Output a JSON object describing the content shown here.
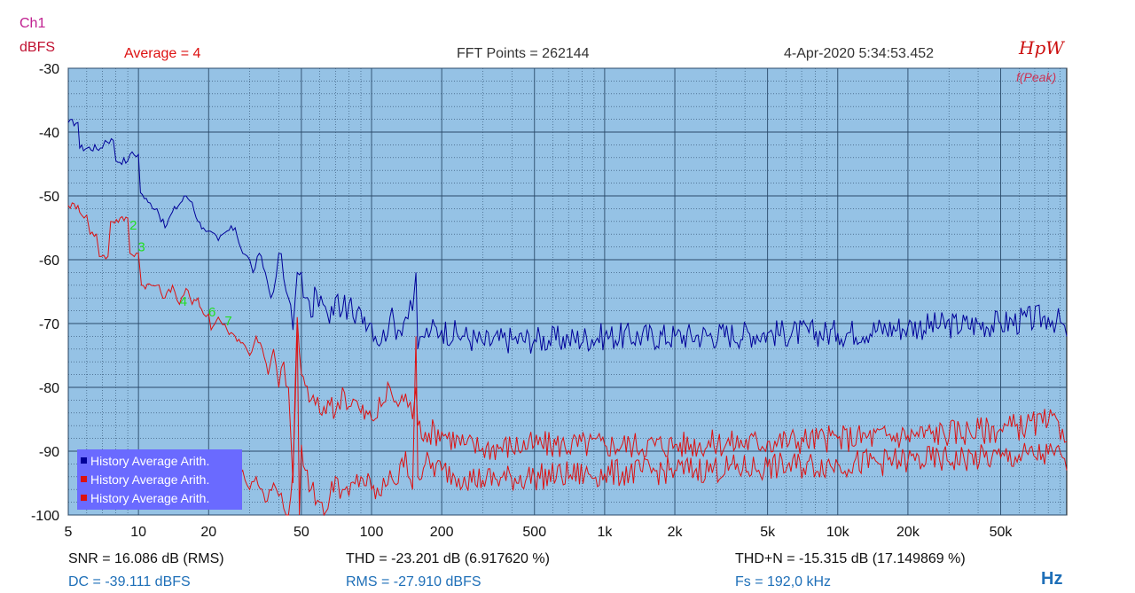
{
  "header": {
    "channel": "Ch1",
    "unit": "dBFS",
    "average": "Average = 4",
    "fft_points": "FFT Points = 262144",
    "timestamp": "4-Apr-2020  5:34:53.452",
    "logo": "HpW",
    "peak_label": "f(Peak)"
  },
  "legend": {
    "items": [
      {
        "label": "History Average Arith.",
        "color": "#000099"
      },
      {
        "label": "History Average Arith.",
        "color": "#dd1111"
      },
      {
        "label": "History Average Arith.",
        "color": "#dd1111"
      }
    ]
  },
  "stats": {
    "snr": "SNR = 16.086 dB (RMS)",
    "thd": "THD = -23.201 dB (6.917620 %)",
    "thdn": "THD+N = -15.315 dB (17.149869 %)",
    "dc": "DC = -39.111 dBFS",
    "rms": "RMS = -27.910 dBFS",
    "fs": "Fs = 192,0 kHz",
    "x_unit": "Hz"
  },
  "colors": {
    "plot_bg": "#95c2e5",
    "grid": "#2a4a6a",
    "blue_trace": "#000099",
    "red_trace": "#dd1111",
    "marker": "#22dd22",
    "legend_bg": "#6a6aff"
  },
  "chart_data": {
    "type": "line",
    "x_scale": "log",
    "xlim": [
      5,
      96000
    ],
    "ylim": [
      -100,
      -30
    ],
    "y_ticks": [
      "-30",
      "-40",
      "-50",
      "-60",
      "-70",
      "-80",
      "-90",
      "-100"
    ],
    "x_ticks": [
      "5",
      "10",
      "20",
      "50",
      "100",
      "200",
      "500",
      "1k",
      "2k",
      "5k",
      "10k",
      "20k",
      "50k"
    ],
    "x_tick_values": [
      5,
      10,
      20,
      50,
      100,
      200,
      500,
      1000,
      2000,
      5000,
      10000,
      20000,
      50000
    ],
    "markers": [
      {
        "label": "2",
        "x": 9.5,
        "y": -55.3
      },
      {
        "label": "3",
        "x": 10.3,
        "y": -58.7
      },
      {
        "label": "4",
        "x": 15.6,
        "y": -67.2
      },
      {
        "label": "6",
        "x": 20.7,
        "y": -68.9
      },
      {
        "label": "7",
        "x": 24.3,
        "y": -70.3
      }
    ],
    "series": [
      {
        "color": "#000099",
        "points": [
          [
            5,
            -38.5
          ],
          [
            5.5,
            -38.5
          ],
          [
            5.6,
            -42.5
          ],
          [
            7,
            -42.5
          ],
          [
            7.2,
            -41.3
          ],
          [
            7.8,
            -41.3
          ],
          [
            8,
            -44.5
          ],
          [
            9,
            -44.5
          ],
          [
            9.2,
            -43.5
          ],
          [
            10,
            -43.5
          ],
          [
            10.2,
            -49.5
          ],
          [
            11,
            -51
          ],
          [
            12,
            -52
          ],
          [
            13,
            -55
          ],
          [
            14,
            -52.5
          ],
          [
            16,
            -50
          ],
          [
            17,
            -51
          ],
          [
            18,
            -54
          ],
          [
            19,
            -55
          ],
          [
            20,
            -55.5
          ],
          [
            22,
            -57
          ],
          [
            24,
            -55.5
          ],
          [
            26,
            -55
          ],
          [
            28,
            -59
          ],
          [
            30,
            -60
          ],
          [
            31,
            -62
          ],
          [
            33,
            -59
          ],
          [
            35,
            -62
          ],
          [
            37,
            -66
          ],
          [
            38,
            -65
          ],
          [
            40,
            -59
          ],
          [
            42,
            -63
          ],
          [
            44,
            -66
          ],
          [
            46,
            -71
          ],
          [
            48,
            -62
          ],
          [
            50,
            -62
          ],
          [
            52,
            -66
          ],
          [
            55,
            -69
          ],
          [
            58,
            -65
          ],
          [
            62,
            -67
          ],
          [
            66,
            -70
          ],
          [
            70,
            -66
          ],
          [
            75,
            -68
          ],
          [
            80,
            -67
          ],
          [
            85,
            -70
          ],
          [
            90,
            -68
          ],
          [
            100,
            -70
          ],
          [
            110,
            -73
          ],
          [
            120,
            -69
          ],
          [
            130,
            -71
          ],
          [
            140,
            -69
          ],
          [
            150,
            -68
          ],
          [
            155,
            -62
          ],
          [
            158,
            -74
          ],
          [
            165,
            -72
          ],
          [
            180,
            -71
          ],
          [
            200,
            -71
          ],
          [
            250,
            -72
          ],
          [
            300,
            -73
          ],
          [
            400,
            -72.5
          ],
          [
            500,
            -72.5
          ],
          [
            700,
            -72.5
          ],
          [
            1000,
            -72
          ],
          [
            2000,
            -72
          ],
          [
            5000,
            -71.5
          ],
          [
            10000,
            -71.5
          ],
          [
            20000,
            -70.5
          ],
          [
            50000,
            -70
          ],
          [
            80000,
            -69
          ],
          [
            92000,
            -70
          ],
          [
            96000,
            -72
          ]
        ]
      },
      {
        "color": "#dd1111",
        "points": [
          [
            5,
            -51.5
          ],
          [
            5.5,
            -51.5
          ],
          [
            5.7,
            -53
          ],
          [
            6,
            -53
          ],
          [
            6.2,
            -56
          ],
          [
            6.6,
            -56
          ],
          [
            6.8,
            -59.5
          ],
          [
            7.4,
            -59.5
          ],
          [
            7.6,
            -54
          ],
          [
            9,
            -53.5
          ],
          [
            9.2,
            -59
          ],
          [
            10,
            -59
          ],
          [
            10.3,
            -64
          ],
          [
            12,
            -64
          ],
          [
            13,
            -66
          ],
          [
            14,
            -64
          ],
          [
            15,
            -67
          ],
          [
            16,
            -64.5
          ],
          [
            17,
            -67
          ],
          [
            18,
            -66
          ],
          [
            19,
            -68.5
          ],
          [
            20,
            -68.5
          ],
          [
            20.5,
            -71
          ],
          [
            22,
            -69
          ],
          [
            24,
            -71
          ],
          [
            26,
            -72
          ],
          [
            28,
            -73
          ],
          [
            30,
            -75
          ],
          [
            32,
            -72
          ],
          [
            34,
            -74
          ],
          [
            36,
            -78
          ],
          [
            38,
            -74
          ],
          [
            40,
            -80
          ],
          [
            42,
            -76
          ],
          [
            44,
            -80
          ],
          [
            46,
            -95
          ],
          [
            48,
            -69
          ],
          [
            50,
            -78
          ],
          [
            55,
            -82
          ],
          [
            60,
            -84
          ],
          [
            65,
            -82
          ],
          [
            70,
            -84
          ],
          [
            75,
            -80
          ],
          [
            80,
            -83
          ],
          [
            85,
            -82
          ],
          [
            90,
            -84
          ],
          [
            100,
            -85
          ],
          [
            110,
            -83
          ],
          [
            120,
            -80
          ],
          [
            130,
            -83
          ],
          [
            140,
            -81
          ],
          [
            150,
            -85
          ],
          [
            155,
            -80
          ],
          [
            158,
            -86
          ],
          [
            170,
            -87
          ],
          [
            200,
            -87
          ],
          [
            250,
            -89
          ],
          [
            300,
            -89.5
          ],
          [
            500,
            -89
          ],
          [
            1000,
            -89
          ],
          [
            2000,
            -89
          ],
          [
            5000,
            -88.5
          ],
          [
            10000,
            -88
          ],
          [
            20000,
            -87.5
          ],
          [
            50000,
            -86.5
          ],
          [
            80000,
            -85.5
          ],
          [
            92000,
            -86.5
          ],
          [
            96000,
            -88.5
          ]
        ]
      },
      {
        "color": "#dd1111",
        "points": [
          [
            24,
            -97
          ],
          [
            25,
            -91
          ],
          [
            26,
            -95
          ],
          [
            28,
            -93
          ],
          [
            30,
            -96
          ],
          [
            32,
            -94
          ],
          [
            35,
            -98
          ],
          [
            38,
            -95
          ],
          [
            40,
            -97
          ],
          [
            42,
            -99
          ],
          [
            44,
            -100
          ],
          [
            46,
            -93
          ],
          [
            48,
            -70
          ],
          [
            49,
            -100
          ],
          [
            50,
            -89
          ],
          [
            52,
            -93
          ],
          [
            55,
            -96
          ],
          [
            60,
            -98
          ],
          [
            65,
            -99
          ],
          [
            70,
            -94
          ],
          [
            75,
            -96
          ],
          [
            80,
            -97
          ],
          [
            90,
            -94
          ],
          [
            100,
            -96
          ],
          [
            110,
            -97
          ],
          [
            120,
            -93
          ],
          [
            130,
            -95
          ],
          [
            140,
            -90
          ],
          [
            150,
            -96
          ],
          [
            155,
            -72
          ],
          [
            158,
            -94
          ],
          [
            170,
            -92
          ],
          [
            200,
            -93
          ],
          [
            250,
            -94
          ],
          [
            300,
            -94.5
          ],
          [
            500,
            -94
          ],
          [
            1000,
            -93.5
          ],
          [
            2000,
            -93
          ],
          [
            5000,
            -92.5
          ],
          [
            10000,
            -92
          ],
          [
            20000,
            -91.5
          ],
          [
            50000,
            -91
          ],
          [
            80000,
            -90.5
          ],
          [
            92000,
            -91
          ],
          [
            96000,
            -93
          ]
        ]
      }
    ]
  }
}
